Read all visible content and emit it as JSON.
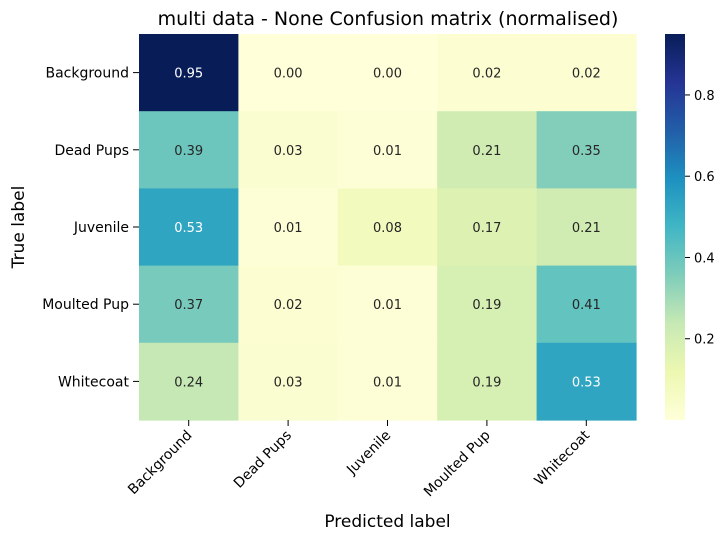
{
  "chart_data": {
    "type": "heatmap",
    "title": "multi data - None Confusion matrix (normalised)",
    "xlabel": "Predicted label",
    "ylabel": "True label",
    "x_categories": [
      "Background",
      "Dead Pups",
      "Juvenile",
      "Moulted Pup",
      "Whitecoat"
    ],
    "y_categories": [
      "Background",
      "Dead Pups",
      "Juvenile",
      "Moulted Pup",
      "Whitecoat"
    ],
    "values": [
      [
        0.95,
        0.0,
        0.0,
        0.02,
        0.02
      ],
      [
        0.39,
        0.03,
        0.01,
        0.21,
        0.35
      ],
      [
        0.53,
        0.01,
        0.08,
        0.17,
        0.21
      ],
      [
        0.37,
        0.02,
        0.01,
        0.19,
        0.41
      ],
      [
        0.24,
        0.03,
        0.01,
        0.19,
        0.53
      ]
    ],
    "value_format": "0.00",
    "colormap": "YlGnBu",
    "vmin": 0.0,
    "vmax": 0.95,
    "colorbar_ticks": [
      0.2,
      0.4,
      0.6,
      0.8
    ],
    "colorbar_ticks_labels": [
      "0.2",
      "0.4",
      "0.6",
      "0.8"
    ]
  }
}
